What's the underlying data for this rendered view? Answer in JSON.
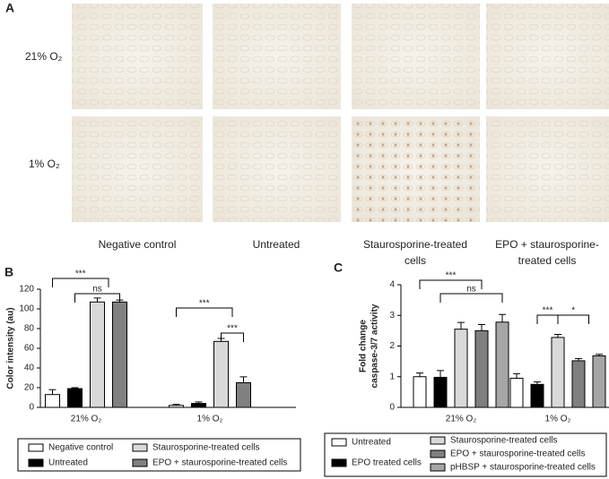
{
  "panel_a": {
    "label": "A",
    "rows": [
      "21% O₂",
      "1% O₂"
    ],
    "columns": [
      "Negative control",
      "Untreated",
      "Staurosporine-treated cells",
      "EPO + staurosporine-treated cells"
    ]
  },
  "chart_data": [
    {
      "type": "bar",
      "panel_label": "B",
      "ylabel": "Color intensity (au)",
      "categories": [
        "21% O₂",
        "1% O₂"
      ],
      "ylim": [
        0,
        120
      ],
      "yticks": [
        0,
        20,
        40,
        60,
        80,
        100,
        120
      ],
      "series": [
        {
          "name": "Negative control",
          "color": "#ffffff",
          "values": [
            13,
            2
          ],
          "errors": [
            5,
            1
          ]
        },
        {
          "name": "Untreated",
          "color": "#000000",
          "values": [
            19,
            4
          ],
          "errors": [
            1,
            1.5
          ]
        },
        {
          "name": "Staurosporine-treated cells",
          "color": "#d9d9d9",
          "values": [
            107,
            67
          ],
          "errors": [
            4,
            3
          ]
        },
        {
          "name": "EPO + staurosporine-treated cells",
          "color": "#808080",
          "values": [
            107,
            25
          ],
          "errors": [
            2,
            6
          ]
        }
      ],
      "annotations": [
        "***",
        "ns",
        "***",
        "***"
      ]
    },
    {
      "type": "bar",
      "panel_label": "C",
      "ylabel": [
        "Fold change",
        "caspase-3/7 activity"
      ],
      "categories": [
        "21% O₂",
        "1% O₂"
      ],
      "ylim": [
        0,
        4
      ],
      "yticks": [
        0,
        1,
        2,
        3,
        4
      ],
      "series": [
        {
          "name": "Untreated",
          "color": "#ffffff",
          "values": [
            1.0,
            0.95
          ],
          "errors": [
            0.12,
            0.15
          ]
        },
        {
          "name": "EPO treated cells",
          "color": "#000000",
          "values": [
            0.98,
            0.75
          ],
          "errors": [
            0.22,
            0.08
          ]
        },
        {
          "name": "Staurosporine-treated cells",
          "color": "#d9d9d9",
          "values": [
            2.55,
            2.28
          ],
          "errors": [
            0.22,
            0.1
          ]
        },
        {
          "name": "EPO + staurosporine-treated cells",
          "color": "#7f7f7f",
          "values": [
            2.5,
            1.52
          ],
          "errors": [
            0.2,
            0.07
          ]
        },
        {
          "name": "pHBSP + staurosporine-treated cells",
          "color": "#a6a6a6",
          "values": [
            2.78,
            1.68
          ],
          "errors": [
            0.25,
            0.05
          ]
        }
      ],
      "annotations": [
        "***",
        "ns",
        "***",
        "*"
      ]
    }
  ]
}
